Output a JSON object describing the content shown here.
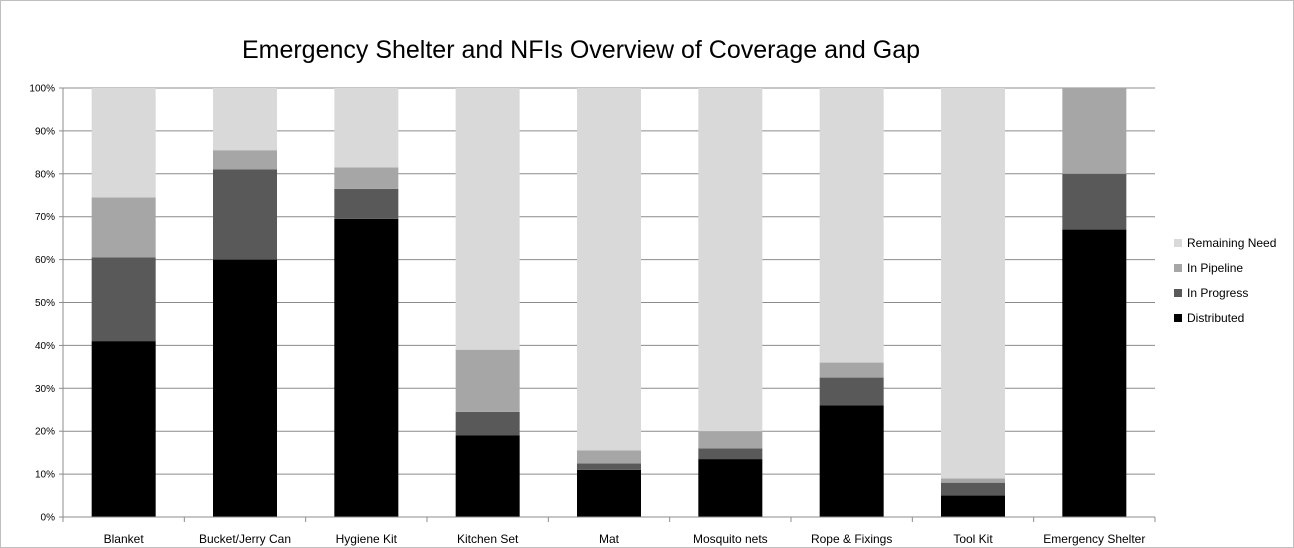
{
  "chart_data": {
    "type": "bar",
    "stacked": true,
    "title": "Emergency Shelter and NFIs Overview of Coverage and Gap",
    "categories": [
      "Blanket",
      "Bucket/Jerry Can",
      "Hygiene Kit",
      "Kitchen Set",
      "Mat",
      "Mosquito nets",
      "Rope & Fixings",
      "Tool Kit",
      "Emergency Shelter"
    ],
    "ylim": [
      0,
      100
    ],
    "y_ticks": [
      "0%",
      "10%",
      "20%",
      "30%",
      "40%",
      "50%",
      "60%",
      "70%",
      "80%",
      "90%",
      "100%"
    ],
    "grid": true,
    "legend_position": "right",
    "series": [
      {
        "name": "Distributed",
        "color": "#000000",
        "values": [
          41,
          60,
          69.5,
          19,
          11,
          13.5,
          26,
          5,
          67
        ]
      },
      {
        "name": "In Progress",
        "color": "#595959",
        "values": [
          19.5,
          21,
          7,
          5.5,
          1.5,
          2.5,
          6.5,
          3,
          13
        ]
      },
      {
        "name": "In Pipeline",
        "color": "#a6a6a6",
        "values": [
          14,
          4.5,
          5,
          14.5,
          3,
          4,
          3.5,
          1,
          20
        ]
      },
      {
        "name": "Remaining Need",
        "color": "#d9d9d9",
        "values": [
          25.5,
          14.5,
          18.5,
          61,
          84.5,
          80,
          64,
          91,
          0
        ]
      }
    ]
  }
}
